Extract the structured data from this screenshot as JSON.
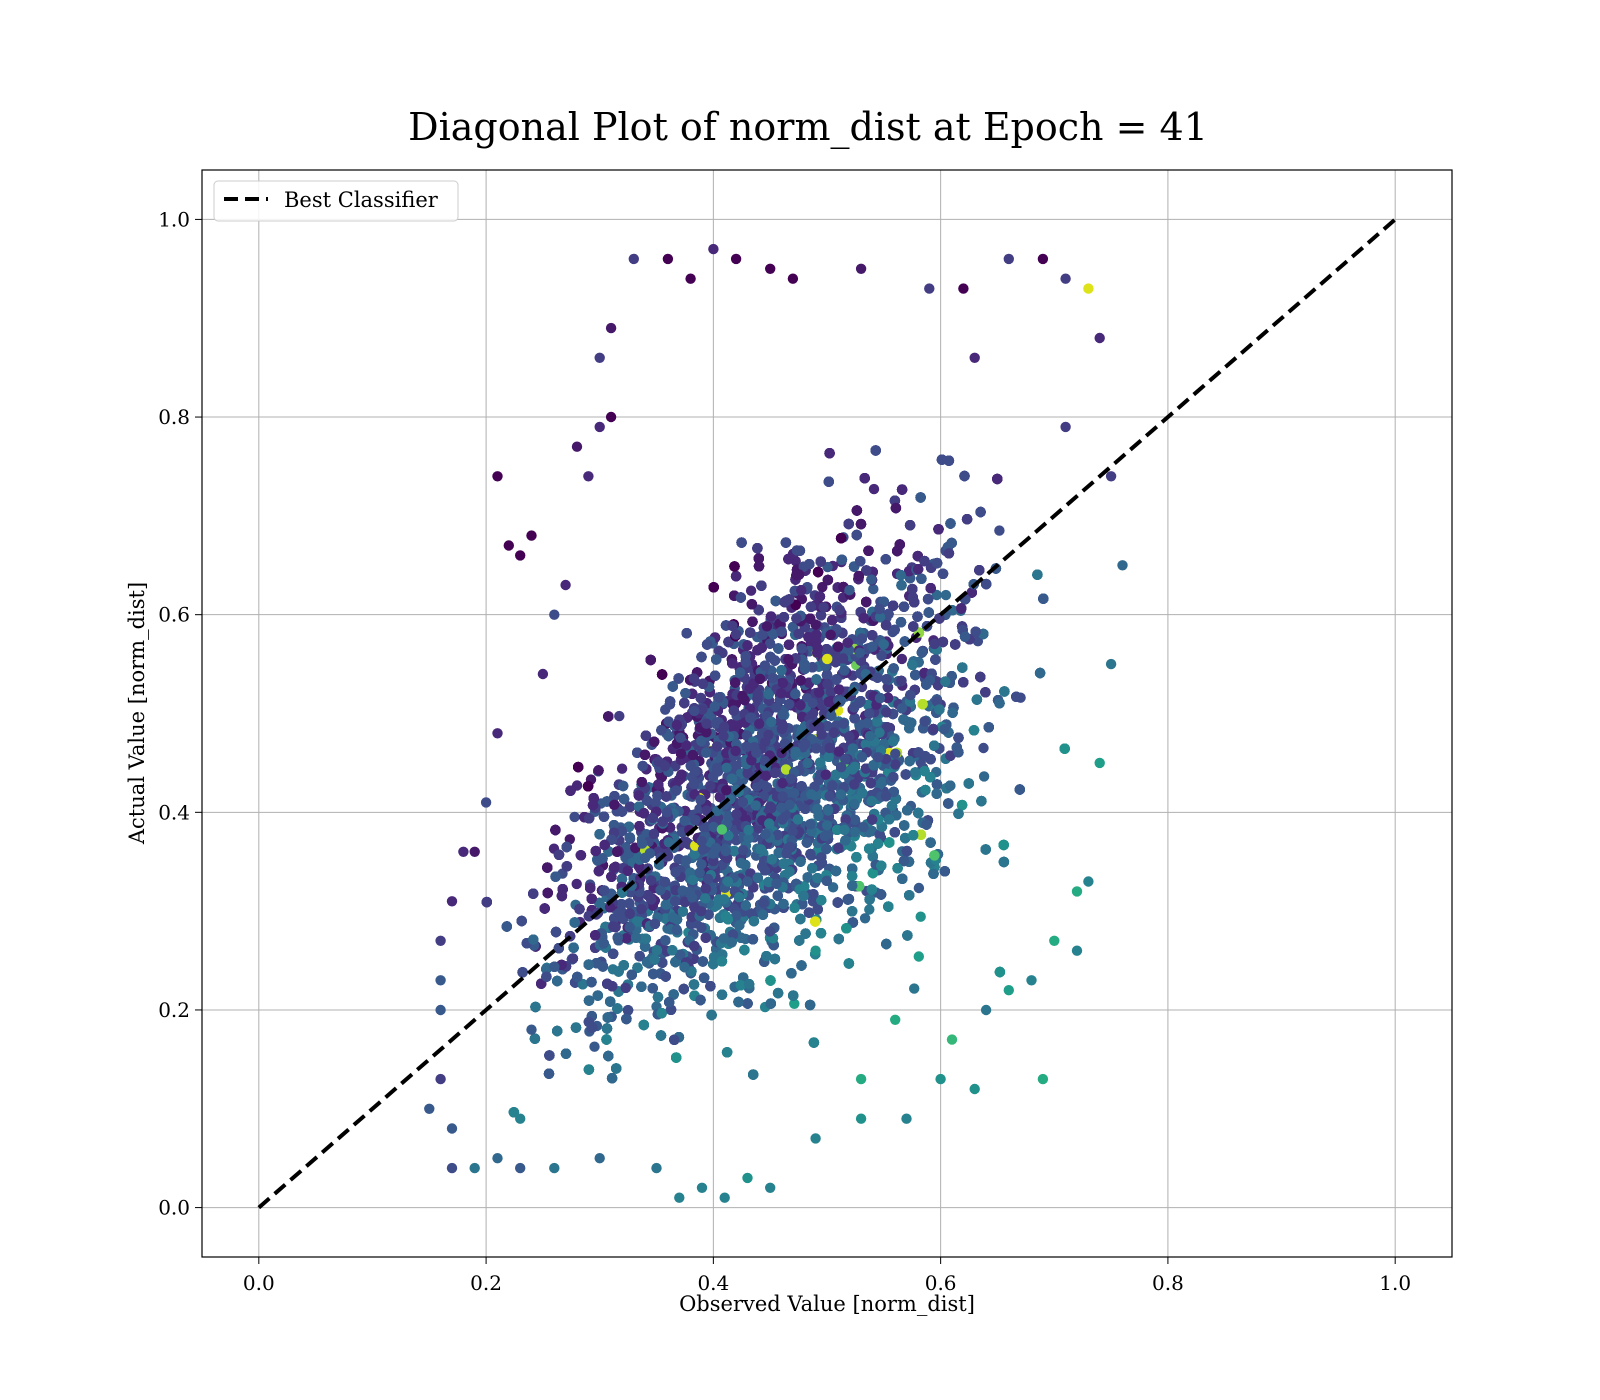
{
  "chart_data": {
    "type": "scatter",
    "title": "Diagonal Plot of norm_dist at Epoch = 41",
    "xlabel": "Observed Value [norm_dist]",
    "ylabel": "Actual Value [norm_dist]",
    "xlim": [
      -0.05,
      1.05
    ],
    "ylim": [
      -0.05,
      1.05
    ],
    "xticks": [
      "0.0",
      "0.2",
      "0.4",
      "0.6",
      "0.8",
      "1.0"
    ],
    "yticks": [
      "0.0",
      "0.2",
      "0.4",
      "0.6",
      "0.8",
      "1.0"
    ],
    "grid": true,
    "legend": {
      "position": "top-left",
      "entries": [
        "Best Classifier"
      ]
    },
    "colormap": "viridis",
    "reference_line": {
      "name": "Best Classifier",
      "x": [
        0.0,
        1.0
      ],
      "y": [
        0.0,
        1.0
      ],
      "style": "dashed",
      "color": "#000000"
    },
    "series": [
      {
        "points": [
          [
            0.16,
            0.27
          ],
          [
            0.17,
            0.31
          ],
          [
            0.18,
            0.36
          ],
          [
            0.19,
            0.36
          ],
          [
            0.21,
            0.74
          ],
          [
            0.22,
            0.67
          ],
          [
            0.23,
            0.66
          ],
          [
            0.24,
            0.68
          ],
          [
            0.26,
            0.6
          ],
          [
            0.28,
            0.77
          ],
          [
            0.3,
            0.86
          ],
          [
            0.31,
            0.89
          ],
          [
            0.33,
            0.96
          ],
          [
            0.36,
            0.96
          ],
          [
            0.38,
            0.94
          ],
          [
            0.4,
            0.97
          ],
          [
            0.42,
            0.96
          ],
          [
            0.45,
            0.95
          ],
          [
            0.47,
            0.94
          ],
          [
            0.53,
            0.95
          ],
          [
            0.59,
            0.93
          ],
          [
            0.62,
            0.93
          ],
          [
            0.66,
            0.96
          ],
          [
            0.69,
            0.96
          ],
          [
            0.71,
            0.94
          ],
          [
            0.73,
            0.93
          ],
          [
            0.74,
            0.88
          ],
          [
            0.75,
            0.74
          ],
          [
            0.76,
            0.65
          ],
          [
            0.75,
            0.55
          ],
          [
            0.74,
            0.45
          ],
          [
            0.73,
            0.33
          ],
          [
            0.72,
            0.26
          ],
          [
            0.69,
            0.13
          ],
          [
            0.68,
            0.23
          ],
          [
            0.63,
            0.12
          ],
          [
            0.61,
            0.17
          ],
          [
            0.6,
            0.13
          ],
          [
            0.57,
            0.09
          ],
          [
            0.53,
            0.09
          ],
          [
            0.49,
            0.07
          ],
          [
            0.45,
            0.02
          ],
          [
            0.43,
            0.03
          ],
          [
            0.41,
            0.01
          ],
          [
            0.39,
            0.02
          ],
          [
            0.37,
            0.01
          ],
          [
            0.35,
            0.04
          ],
          [
            0.3,
            0.05
          ],
          [
            0.26,
            0.04
          ],
          [
            0.23,
            0.04
          ],
          [
            0.21,
            0.05
          ],
          [
            0.19,
            0.04
          ],
          [
            0.17,
            0.04
          ],
          [
            0.15,
            0.1
          ],
          [
            0.17,
            0.08
          ],
          [
            0.16,
            0.13
          ],
          [
            0.16,
            0.2
          ],
          [
            0.16,
            0.23
          ],
          [
            0.49,
            0.59
          ],
          [
            0.55,
            0.57
          ],
          [
            0.63,
            0.86
          ],
          [
            0.71,
            0.79
          ],
          [
            0.49,
            0.26
          ],
          [
            0.43,
            0.33
          ],
          [
            0.24,
            0.18
          ],
          [
            0.23,
            0.09
          ],
          [
            0.48,
            0.55
          ],
          [
            0.53,
            0.13
          ],
          [
            0.56,
            0.19
          ],
          [
            0.2,
            0.41
          ],
          [
            0.21,
            0.48
          ],
          [
            0.25,
            0.54
          ],
          [
            0.27,
            0.63
          ],
          [
            0.29,
            0.74
          ],
          [
            0.3,
            0.79
          ],
          [
            0.31,
            0.8
          ],
          [
            0.66,
            0.22
          ],
          [
            0.64,
            0.2
          ],
          [
            0.7,
            0.27
          ],
          [
            0.72,
            0.32
          ]
        ],
        "bulk_cloud": {
          "lower_band": {
            "x": [
              0.16,
              0.76
            ],
            "y_at_x": [
              0.02,
              0.27
            ]
          },
          "upper_band": {
            "x": [
              0.16,
              0.76
            ],
            "y_at_x": [
              0.33,
              0.97
            ]
          },
          "approx_count": 18000
        }
      }
    ]
  }
}
